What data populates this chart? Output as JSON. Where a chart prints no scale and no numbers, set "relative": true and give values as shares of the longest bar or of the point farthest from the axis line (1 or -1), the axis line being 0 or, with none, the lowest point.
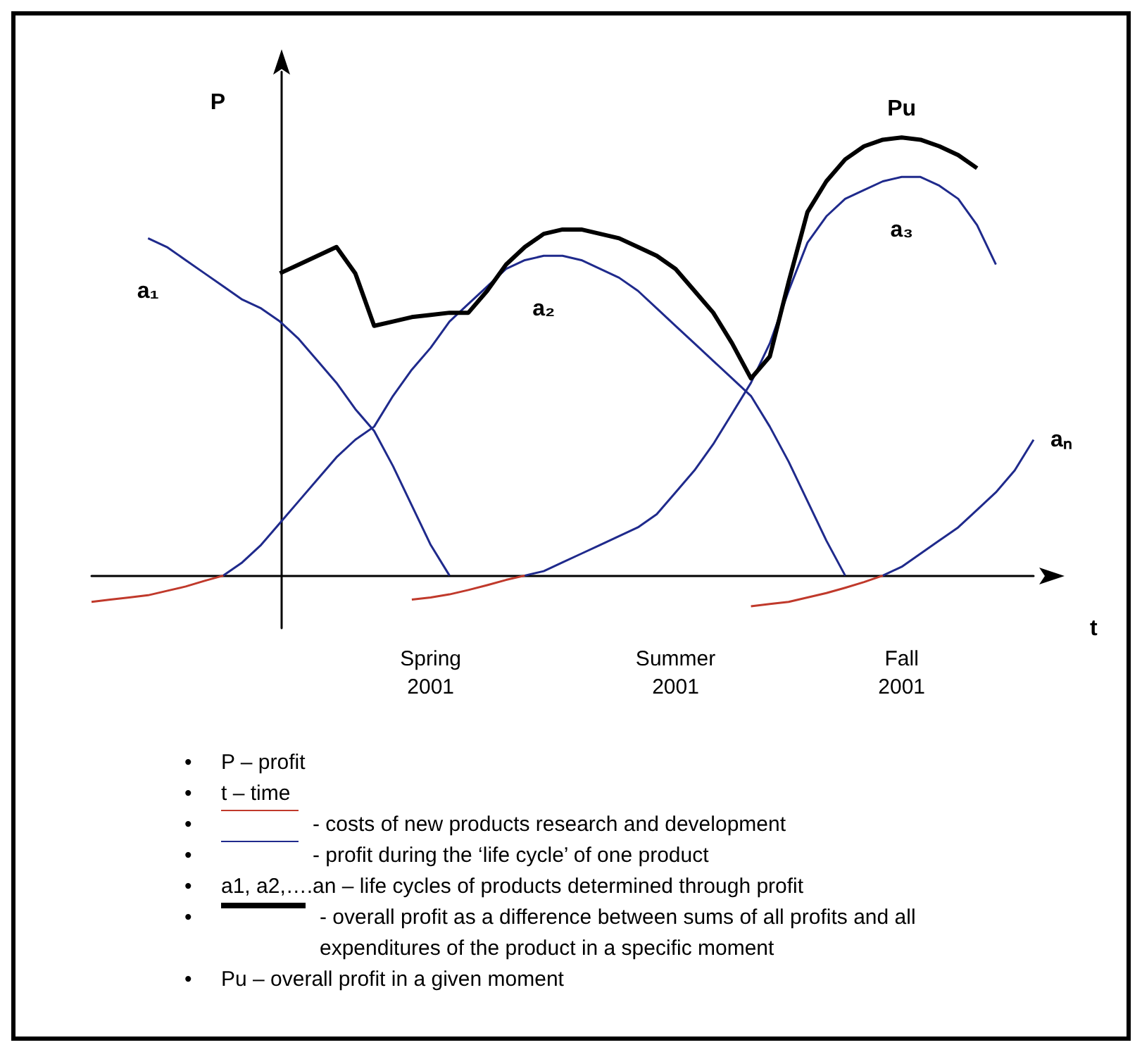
{
  "chart_data": {
    "type": "line",
    "relative": true,
    "xlabel": "t",
    "ylabel": "P",
    "categories": [
      null,
      null,
      null,
      null,
      null,
      null,
      null,
      null,
      null,
      null,
      null,
      null,
      null,
      null,
      null,
      null,
      null,
      null,
      "Spring\n2001",
      null,
      null,
      null,
      null,
      null,
      null,
      null,
      null,
      null,
      null,
      null,
      null,
      "Summer\n2001",
      null,
      null,
      null,
      null,
      null,
      null,
      null,
      null,
      null,
      null,
      null,
      "Fall\n2001",
      null,
      null,
      null,
      null,
      null,
      null,
      null
    ],
    "series": [
      {
        "color": "#c0392b",
        "values": [
          -0.06,
          -0.055,
          -0.05,
          -0.045,
          -0.035,
          -0.025,
          -0.012,
          0,
          null,
          null,
          null,
          null,
          null,
          null,
          null,
          null,
          null,
          null,
          null,
          null,
          null,
          null,
          null,
          null,
          null,
          null,
          null,
          null,
          null,
          null,
          null,
          null,
          null,
          null,
          null,
          null,
          null,
          null,
          null,
          null,
          null,
          null,
          null,
          null,
          null,
          null,
          null,
          null,
          null,
          null,
          null
        ]
      },
      {
        "color": "#c0392b",
        "values": [
          null,
          null,
          null,
          null,
          null,
          null,
          null,
          null,
          null,
          null,
          null,
          null,
          null,
          null,
          null,
          null,
          null,
          -0.055,
          -0.05,
          -0.043,
          -0.033,
          -0.022,
          -0.01,
          0,
          null,
          null,
          null,
          null,
          null,
          null,
          null,
          null,
          null,
          null,
          null,
          null,
          null,
          null,
          null,
          null,
          null,
          null,
          null,
          null,
          null,
          null,
          null,
          null,
          null,
          null,
          null
        ]
      },
      {
        "color": "#c0392b",
        "values": [
          null,
          null,
          null,
          null,
          null,
          null,
          null,
          null,
          null,
          null,
          null,
          null,
          null,
          null,
          null,
          null,
          null,
          null,
          null,
          null,
          null,
          null,
          null,
          null,
          null,
          null,
          null,
          null,
          null,
          null,
          null,
          null,
          null,
          null,
          null,
          -0.07,
          -0.065,
          -0.06,
          -0.05,
          -0.04,
          -0.028,
          -0.015,
          0,
          null,
          null,
          null,
          null,
          null,
          null,
          null,
          null
        ]
      },
      {
        "name": "a₁",
        "color": "#1f2a8c",
        "values": [
          null,
          null,
          null,
          0.77,
          0.75,
          0.72,
          0.69,
          0.66,
          0.63,
          0.61,
          0.58,
          0.54,
          0.49,
          0.44,
          0.38,
          0.33,
          0.25,
          0.16,
          0.07,
          0,
          null,
          null,
          null,
          null,
          null,
          null,
          null,
          null,
          null,
          null,
          null,
          null,
          null,
          null,
          null,
          null,
          null,
          null,
          null,
          null,
          null,
          null,
          null,
          null,
          null,
          null,
          null,
          null,
          null,
          null,
          null
        ]
      },
      {
        "name": "a₂",
        "color": "#1f2a8c",
        "values": [
          null,
          null,
          null,
          null,
          null,
          null,
          null,
          0,
          0.03,
          0.07,
          0.12,
          0.17,
          0.22,
          0.27,
          0.31,
          0.34,
          0.41,
          0.47,
          0.52,
          0.58,
          0.62,
          0.66,
          0.7,
          0.72,
          0.73,
          0.73,
          0.72,
          0.7,
          0.68,
          0.65,
          0.61,
          0.57,
          0.53,
          0.49,
          0.45,
          0.41,
          0.34,
          0.26,
          0.17,
          0.08,
          0,
          null,
          null,
          null,
          null,
          null,
          null,
          null,
          null,
          null,
          null
        ]
      },
      {
        "name": "a₃",
        "color": "#1f2a8c",
        "values": [
          null,
          null,
          null,
          null,
          null,
          null,
          null,
          null,
          null,
          null,
          null,
          null,
          null,
          null,
          null,
          null,
          null,
          null,
          null,
          null,
          null,
          null,
          null,
          0,
          0.01,
          0.03,
          0.05,
          0.07,
          0.09,
          0.11,
          0.14,
          0.19,
          0.24,
          0.3,
          0.37,
          0.44,
          0.53,
          0.65,
          0.76,
          0.82,
          0.86,
          0.88,
          0.9,
          0.91,
          0.91,
          0.89,
          0.86,
          0.8,
          0.71,
          null,
          null
        ]
      },
      {
        "name": "aₙ",
        "color": "#1f2a8c",
        "values": [
          null,
          null,
          null,
          null,
          null,
          null,
          null,
          null,
          null,
          null,
          null,
          null,
          null,
          null,
          null,
          null,
          null,
          null,
          null,
          null,
          null,
          null,
          null,
          null,
          null,
          null,
          null,
          null,
          null,
          null,
          null,
          null,
          null,
          null,
          null,
          null,
          null,
          null,
          null,
          null,
          null,
          null,
          0,
          0.02,
          0.05,
          0.08,
          0.11,
          0.15,
          0.19,
          0.24,
          0.31
        ]
      },
      {
        "name": "Pu",
        "color": "#000000",
        "values": [
          null,
          null,
          null,
          null,
          null,
          null,
          null,
          null,
          null,
          null,
          0.69,
          0.71,
          0.73,
          0.75,
          0.69,
          0.57,
          0.58,
          0.59,
          0.595,
          0.6,
          0.6,
          0.65,
          0.71,
          0.75,
          0.78,
          0.79,
          0.79,
          0.78,
          0.77,
          0.75,
          0.73,
          0.7,
          0.65,
          0.6,
          0.53,
          0.45,
          0.5,
          0.67,
          0.83,
          0.9,
          0.95,
          0.98,
          0.995,
          1,
          0.995,
          0.98,
          0.96,
          0.93,
          null,
          null,
          null
        ]
      }
    ],
    "annotations": [
      "•",
      "P – profit",
      "•",
      "t – time",
      "•",
      "- costs of new products research and development",
      "•",
      "- profit during the ‘life cycle’ of one product",
      "•",
      "a1, a2,….an – life cycles of products determined through profit",
      "•",
      "- overall profit as a difference between sums of all profits and all expenditures of the product in a specific moment",
      "•",
      "Pu – overall profit in a given moment"
    ]
  }
}
